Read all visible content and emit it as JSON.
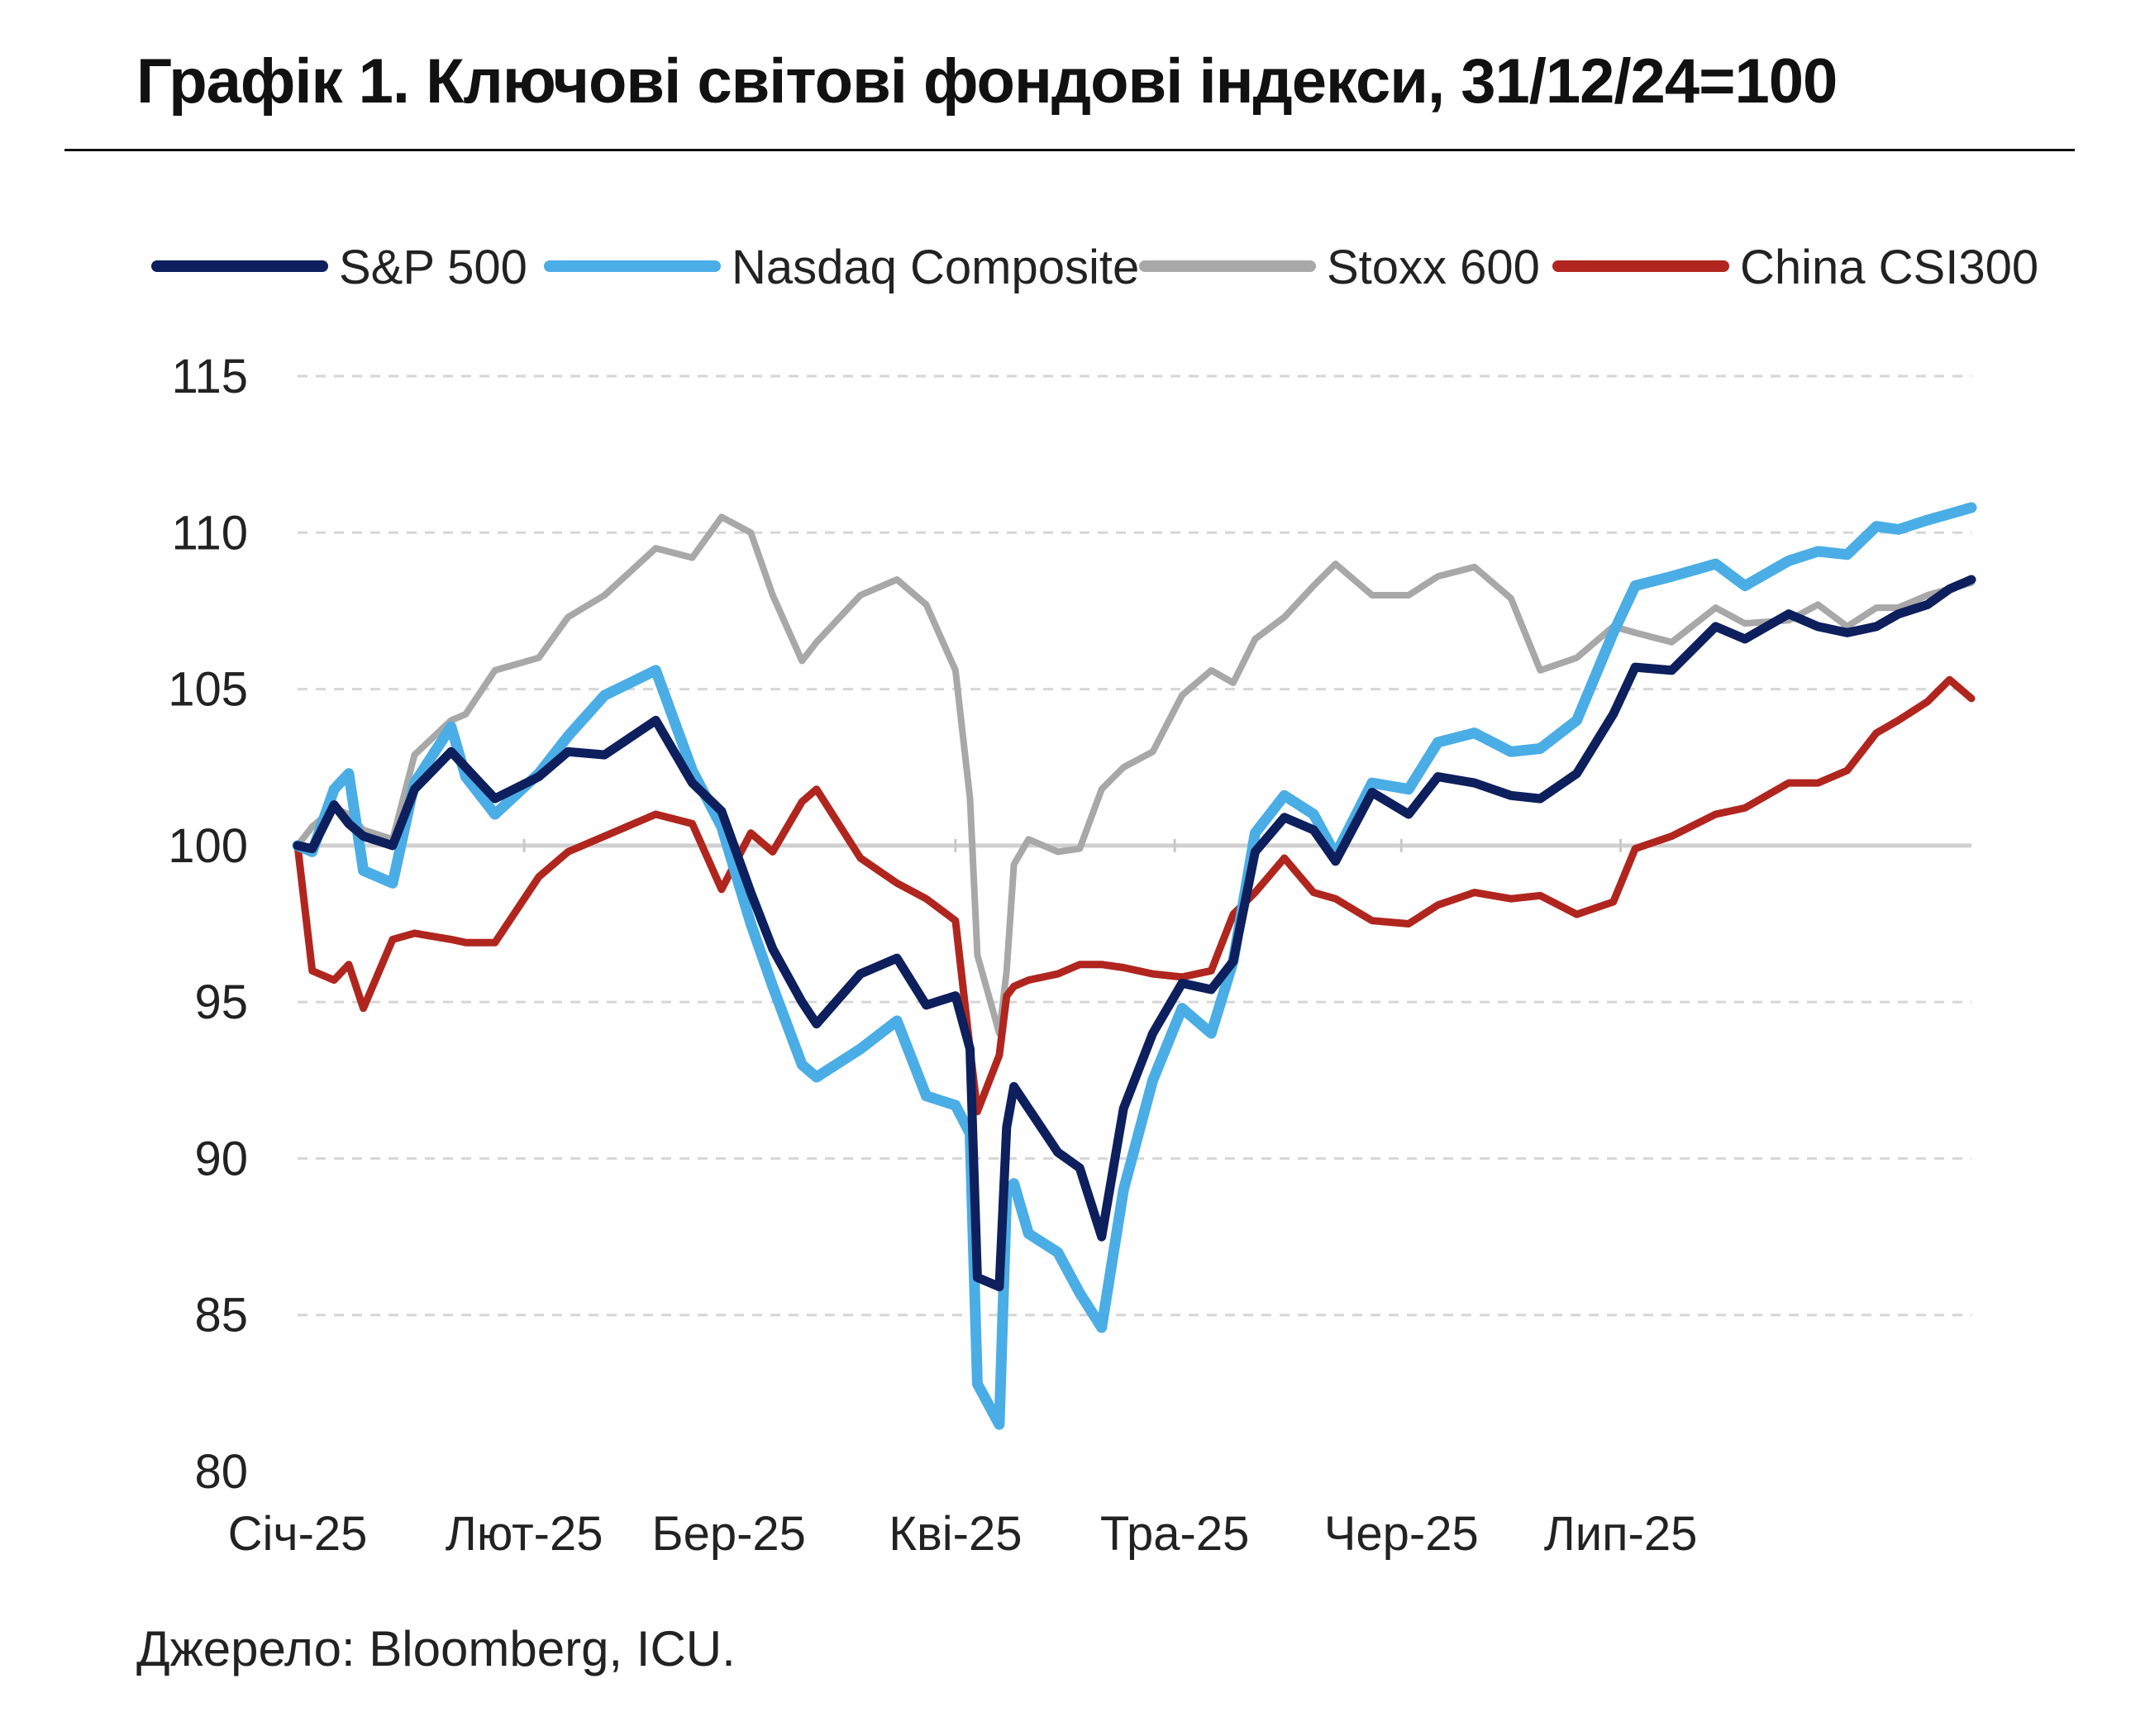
{
  "title": "Графік 1. Ключові світові фондові індекси, 31/12/24=100",
  "source": "Джерело: Bloomberg, ICU.",
  "chart_data": {
    "type": "line",
    "title": "Графік 1. Ключові світові фондові індекси, 31/12/24=100",
    "xlabel": "",
    "ylabel": "",
    "ylim": [
      80,
      115
    ],
    "yticks": [
      "80",
      "85",
      "90",
      "95",
      "100",
      "105",
      "110",
      "115"
    ],
    "xticks": [
      "Січ-25",
      "Лют-25",
      "Бер-25",
      "Кві-25",
      "Тра-25",
      "Чер-25",
      "Лип-25"
    ],
    "xlim": [
      "2025-01-01",
      "2025-08-18"
    ],
    "grid": true,
    "legend_position": "top",
    "series": [
      {
        "name": "S&P 500",
        "color": "#0d1f5c",
        "x": [
          "2025-01-01",
          "2025-01-03",
          "2025-01-06",
          "2025-01-08",
          "2025-01-10",
          "2025-01-14",
          "2025-01-17",
          "2025-01-22",
          "2025-01-24",
          "2025-01-28",
          "2025-02-03",
          "2025-02-07",
          "2025-02-12",
          "2025-02-19",
          "2025-02-24",
          "2025-02-28",
          "2025-03-04",
          "2025-03-07",
          "2025-03-11",
          "2025-03-13",
          "2025-03-19",
          "2025-03-24",
          "2025-03-28",
          "2025-04-01",
          "2025-04-03",
          "2025-04-04",
          "2025-04-07",
          "2025-04-08",
          "2025-04-09",
          "2025-04-11",
          "2025-04-15",
          "2025-04-18",
          "2025-04-21",
          "2025-04-24",
          "2025-04-28",
          "2025-05-02",
          "2025-05-06",
          "2025-05-09",
          "2025-05-12",
          "2025-05-16",
          "2025-05-20",
          "2025-05-23",
          "2025-05-28",
          "2025-06-02",
          "2025-06-06",
          "2025-06-11",
          "2025-06-16",
          "2025-06-20",
          "2025-06-25",
          "2025-06-30",
          "2025-07-03",
          "2025-07-08",
          "2025-07-14",
          "2025-07-18",
          "2025-07-24",
          "2025-07-28",
          "2025-08-01",
          "2025-08-05",
          "2025-08-08",
          "2025-08-12",
          "2025-08-15",
          "2025-08-18"
        ],
        "values": [
          100.0,
          99.9,
          101.3,
          100.7,
          100.3,
          100.0,
          101.8,
          103.0,
          102.5,
          101.5,
          102.2,
          103.0,
          102.9,
          104.0,
          102.0,
          101.1,
          98.5,
          96.7,
          95.0,
          94.3,
          95.9,
          96.4,
          94.9,
          95.2,
          93.5,
          86.2,
          85.9,
          91.0,
          92.3,
          91.6,
          90.2,
          89.7,
          87.5,
          91.6,
          94.0,
          95.6,
          95.4,
          96.3,
          99.8,
          100.9,
          100.5,
          99.5,
          101.7,
          101.0,
          102.2,
          102.0,
          101.6,
          101.5,
          102.3,
          104.2,
          105.7,
          105.6,
          107.0,
          106.6,
          107.4,
          107.0,
          106.8,
          107.0,
          107.4,
          107.7,
          108.2,
          108.5
        ]
      },
      {
        "name": "Nasdaq Composite",
        "color": "#4aade6",
        "x": [
          "2025-01-01",
          "2025-01-03",
          "2025-01-06",
          "2025-01-08",
          "2025-01-10",
          "2025-01-14",
          "2025-01-17",
          "2025-01-22",
          "2025-01-24",
          "2025-01-28",
          "2025-02-03",
          "2025-02-07",
          "2025-02-12",
          "2025-02-19",
          "2025-02-24",
          "2025-02-28",
          "2025-03-04",
          "2025-03-07",
          "2025-03-11",
          "2025-03-13",
          "2025-03-19",
          "2025-03-24",
          "2025-03-28",
          "2025-04-01",
          "2025-04-03",
          "2025-04-04",
          "2025-04-07",
          "2025-04-08",
          "2025-04-09",
          "2025-04-11",
          "2025-04-15",
          "2025-04-18",
          "2025-04-21",
          "2025-04-24",
          "2025-04-28",
          "2025-05-02",
          "2025-05-06",
          "2025-05-09",
          "2025-05-12",
          "2025-05-16",
          "2025-05-20",
          "2025-05-23",
          "2025-05-28",
          "2025-06-02",
          "2025-06-06",
          "2025-06-11",
          "2025-06-16",
          "2025-06-20",
          "2025-06-25",
          "2025-06-30",
          "2025-07-03",
          "2025-07-08",
          "2025-07-14",
          "2025-07-18",
          "2025-07-24",
          "2025-07-28",
          "2025-08-01",
          "2025-08-05",
          "2025-08-08",
          "2025-08-12",
          "2025-08-15",
          "2025-08-18"
        ],
        "values": [
          100.0,
          99.8,
          101.8,
          102.3,
          99.2,
          98.8,
          102.0,
          103.8,
          102.2,
          101.0,
          102.3,
          103.5,
          104.8,
          105.6,
          102.4,
          100.6,
          97.5,
          95.5,
          93.0,
          92.6,
          93.5,
          94.4,
          92.0,
          91.7,
          90.8,
          82.8,
          81.5,
          88.9,
          89.2,
          87.6,
          87.0,
          85.7,
          84.6,
          89.0,
          92.5,
          94.8,
          94.0,
          96.3,
          100.4,
          101.6,
          101.0,
          99.7,
          102.0,
          101.8,
          103.3,
          103.6,
          103.0,
          103.1,
          104.0,
          106.8,
          108.3,
          108.6,
          109.0,
          108.3,
          109.1,
          109.4,
          109.3,
          110.2,
          110.1,
          110.4,
          110.6,
          110.8
        ]
      },
      {
        "name": "Stoxx 600",
        "color": "#a8a8a8",
        "x": [
          "2025-01-01",
          "2025-01-03",
          "2025-01-06",
          "2025-01-08",
          "2025-01-10",
          "2025-01-14",
          "2025-01-17",
          "2025-01-22",
          "2025-01-24",
          "2025-01-28",
          "2025-02-03",
          "2025-02-07",
          "2025-02-12",
          "2025-02-19",
          "2025-02-24",
          "2025-02-28",
          "2025-03-04",
          "2025-03-07",
          "2025-03-11",
          "2025-03-13",
          "2025-03-19",
          "2025-03-24",
          "2025-03-28",
          "2025-04-01",
          "2025-04-03",
          "2025-04-04",
          "2025-04-07",
          "2025-04-08",
          "2025-04-09",
          "2025-04-11",
          "2025-04-15",
          "2025-04-18",
          "2025-04-21",
          "2025-04-24",
          "2025-04-28",
          "2025-05-02",
          "2025-05-06",
          "2025-05-09",
          "2025-05-12",
          "2025-05-16",
          "2025-05-20",
          "2025-05-23",
          "2025-05-28",
          "2025-06-02",
          "2025-06-06",
          "2025-06-11",
          "2025-06-16",
          "2025-06-20",
          "2025-06-25",
          "2025-06-30",
          "2025-07-03",
          "2025-07-08",
          "2025-07-14",
          "2025-07-18",
          "2025-07-24",
          "2025-07-28",
          "2025-08-01",
          "2025-08-05",
          "2025-08-08",
          "2025-08-12",
          "2025-08-15",
          "2025-08-18"
        ],
        "values": [
          100.0,
          100.6,
          101.2,
          101.0,
          100.5,
          100.2,
          102.9,
          104.0,
          104.2,
          105.6,
          106.0,
          107.3,
          108.0,
          109.5,
          109.2,
          110.5,
          110.0,
          108.0,
          105.9,
          106.5,
          108.0,
          108.5,
          107.7,
          105.6,
          101.5,
          96.5,
          94.0,
          96.0,
          99.4,
          100.2,
          99.8,
          99.9,
          101.8,
          102.5,
          103.0,
          104.8,
          105.6,
          105.2,
          106.6,
          107.3,
          108.3,
          109.0,
          108.0,
          108.0,
          108.6,
          108.9,
          107.9,
          105.6,
          106.0,
          107.0,
          106.8,
          106.5,
          107.6,
          107.1,
          107.2,
          107.7,
          107.0,
          107.6,
          107.6,
          108.0,
          108.2,
          108.4
        ]
      },
      {
        "name": "China CSI300",
        "color": "#b0261e",
        "x": [
          "2025-01-01",
          "2025-01-03",
          "2025-01-06",
          "2025-01-08",
          "2025-01-10",
          "2025-01-14",
          "2025-01-17",
          "2025-01-22",
          "2025-01-24",
          "2025-01-28",
          "2025-02-03",
          "2025-02-07",
          "2025-02-12",
          "2025-02-19",
          "2025-02-24",
          "2025-02-28",
          "2025-03-04",
          "2025-03-07",
          "2025-03-11",
          "2025-03-13",
          "2025-03-19",
          "2025-03-24",
          "2025-03-28",
          "2025-04-01",
          "2025-04-03",
          "2025-04-04",
          "2025-04-07",
          "2025-04-08",
          "2025-04-09",
          "2025-04-11",
          "2025-04-15",
          "2025-04-18",
          "2025-04-21",
          "2025-04-24",
          "2025-04-28",
          "2025-05-02",
          "2025-05-06",
          "2025-05-09",
          "2025-05-12",
          "2025-05-16",
          "2025-05-20",
          "2025-05-23",
          "2025-05-28",
          "2025-06-02",
          "2025-06-06",
          "2025-06-11",
          "2025-06-16",
          "2025-06-20",
          "2025-06-25",
          "2025-06-30",
          "2025-07-03",
          "2025-07-08",
          "2025-07-14",
          "2025-07-18",
          "2025-07-24",
          "2025-07-28",
          "2025-08-01",
          "2025-08-05",
          "2025-08-08",
          "2025-08-12",
          "2025-08-15",
          "2025-08-18"
        ],
        "values": [
          100.0,
          96.0,
          95.7,
          96.2,
          94.8,
          97.0,
          97.2,
          97.0,
          96.9,
          96.9,
          99.0,
          99.8,
          100.3,
          101.0,
          100.7,
          98.6,
          100.4,
          99.8,
          101.4,
          101.8,
          99.6,
          98.8,
          98.3,
          97.6,
          93.5,
          91.5,
          93.3,
          95.2,
          95.5,
          95.7,
          95.9,
          96.2,
          96.2,
          96.1,
          95.9,
          95.8,
          96.0,
          97.8,
          98.5,
          99.6,
          98.5,
          98.3,
          97.6,
          97.5,
          98.1,
          98.5,
          98.3,
          98.4,
          97.8,
          98.2,
          99.9,
          100.3,
          101.0,
          101.2,
          102.0,
          102.0,
          102.4,
          103.6,
          104.0,
          104.6,
          105.3,
          104.7
        ]
      }
    ]
  }
}
